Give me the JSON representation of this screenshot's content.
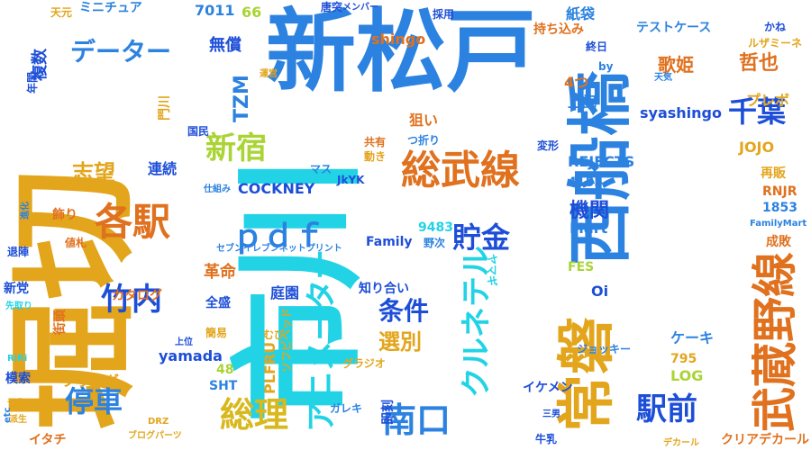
{
  "colors": {
    "blue": "#2c82e0",
    "cyan": "#22d3e6",
    "amber": "#e3a51c",
    "orange": "#e0711e",
    "darkblue": "#1d4ed8",
    "lime": "#a9d433",
    "gold": "#d9b81d"
  },
  "words": [
    {
      "text": "新松戸",
      "color": "blue"
    },
    {
      "text": "市川",
      "color": "cyan"
    },
    {
      "text": "堀切",
      "color": "amber"
    },
    {
      "text": "西船橋",
      "color": "blue"
    },
    {
      "text": "常磐",
      "color": "amber"
    },
    {
      "text": "武蔵野線",
      "color": "orange"
    },
    {
      "text": "総武線",
      "color": "orange"
    },
    {
      "text": "各駅",
      "color": "orange"
    },
    {
      "text": "新宿",
      "color": "lime"
    },
    {
      "text": "千葉",
      "color": "darkblue"
    },
    {
      "text": "竹内",
      "color": "darkblue"
    },
    {
      "text": "停車",
      "color": "blue"
    },
    {
      "text": "総理",
      "color": "gold"
    },
    {
      "text": "南口",
      "color": "blue"
    },
    {
      "text": "駅前",
      "color": "darkblue"
    },
    {
      "text": "貯金",
      "color": "darkblue"
    },
    {
      "text": "ｐｄｆ",
      "color": "blue"
    },
    {
      "text": "データー",
      "color": "blue"
    },
    {
      "text": "クルネテル",
      "color": "cyan"
    },
    {
      "text": "アニメーター",
      "color": "cyan"
    },
    {
      "text": "条件",
      "color": "darkblue"
    },
    {
      "text": "選別",
      "color": "amber"
    },
    {
      "text": "機関",
      "color": "darkblue"
    },
    {
      "text": "志望",
      "color": "amber"
    },
    {
      "text": "哲也",
      "color": "orange"
    },
    {
      "text": "歌姫",
      "color": "orange"
    },
    {
      "text": "無償",
      "color": "darkblue"
    },
    {
      "text": "TZM",
      "color": "blue"
    },
    {
      "text": "COCKNEY",
      "color": "darkblue"
    },
    {
      "text": "REJECTS",
      "color": "blue"
    },
    {
      "text": "syashingo",
      "color": "darkblue"
    },
    {
      "text": "shingo",
      "color": "orange"
    },
    {
      "text": "Family",
      "color": "darkblue"
    },
    {
      "text": "Mart",
      "color": "blue"
    },
    {
      "text": "革命",
      "color": "orange"
    },
    {
      "text": "庭園",
      "color": "darkblue"
    },
    {
      "text": "yamada",
      "color": "darkblue"
    },
    {
      "text": "ケーキ",
      "color": "blue"
    },
    {
      "text": "フラッグ",
      "color": "amber"
    },
    {
      "text": "テストケース",
      "color": "blue"
    },
    {
      "text": "ミニチュア",
      "color": "blue"
    },
    {
      "text": "JOJO",
      "color": "amber"
    },
    {
      "text": "プレボ",
      "color": "amber"
    },
    {
      "text": "上記",
      "color": "blue"
    },
    {
      "text": "狙い",
      "color": "orange"
    },
    {
      "text": "連続",
      "color": "darkblue"
    },
    {
      "text": "紙袋",
      "color": "blue"
    },
    {
      "text": "4つ",
      "color": "orange"
    },
    {
      "text": "LOG",
      "color": "lime"
    },
    {
      "text": "FES",
      "color": "lime"
    },
    {
      "text": "SHT",
      "color": "blue"
    },
    {
      "text": "48",
      "color": "lime"
    },
    {
      "text": "66",
      "color": "lime"
    },
    {
      "text": "7011",
      "color": "blue"
    },
    {
      "text": "9483",
      "color": "cyan"
    },
    {
      "text": "4155",
      "color": "blue"
    },
    {
      "text": "1853",
      "color": "blue"
    },
    {
      "text": "795",
      "color": "amber"
    },
    {
      "text": "Oi",
      "color": "darkblue"
    },
    {
      "text": "RNJR",
      "color": "orange"
    },
    {
      "text": "再販",
      "color": "amber"
    },
    {
      "text": "成敗",
      "color": "orange"
    },
    {
      "text": "かね",
      "color": "darkblue"
    },
    {
      "text": "複数",
      "color": "darkblue"
    },
    {
      "text": "年間",
      "color": "darkblue"
    },
    {
      "text": "飾り",
      "color": "orange"
    },
    {
      "text": "値札",
      "color": "orange"
    },
    {
      "text": "新党",
      "color": "darkblue"
    },
    {
      "text": "先取り",
      "color": "cyan"
    },
    {
      "text": "街頭",
      "color": "orange"
    },
    {
      "text": "模索",
      "color": "darkblue"
    },
    {
      "text": "RiRi",
      "color": "cyan"
    },
    {
      "text": "予告",
      "color": "amber"
    },
    {
      "text": "派生",
      "color": "amber"
    },
    {
      "text": "etc",
      "color": "blue"
    },
    {
      "text": "イタチ",
      "color": "orange"
    },
    {
      "text": "ブログパーツ",
      "color": "amber"
    },
    {
      "text": "DRZ",
      "color": "amber"
    },
    {
      "text": "即刻",
      "color": "darkblue"
    },
    {
      "text": "三男",
      "color": "darkblue"
    },
    {
      "text": "牛乳",
      "color": "darkblue"
    },
    {
      "text": "デカール",
      "color": "amber"
    },
    {
      "text": "クリアデカール",
      "color": "orange"
    },
    {
      "text": "イケメン",
      "color": "darkblue"
    },
    {
      "text": "ガレキ",
      "color": "blue"
    },
    {
      "text": "グラジオ",
      "color": "amber"
    },
    {
      "text": "ソフビヘッド",
      "color": "amber"
    },
    {
      "text": "PLFRU",
      "color": "amber"
    },
    {
      "text": "むび",
      "color": "amber"
    },
    {
      "text": "上位",
      "color": "darkblue"
    },
    {
      "text": "簡易",
      "color": "amber"
    },
    {
      "text": "全盛",
      "color": "darkblue"
    },
    {
      "text": "カタログ",
      "color": "orange"
    },
    {
      "text": "知り合い",
      "color": "darkblue"
    },
    {
      "text": "ヤマギ",
      "color": "cyan"
    },
    {
      "text": "ジョッキー",
      "color": "blue"
    },
    {
      "text": "野次",
      "color": "blue"
    },
    {
      "text": "セブンイレブンネットプリント",
      "color": "blue"
    },
    {
      "text": "FamilyMart",
      "color": "blue"
    },
    {
      "text": "JkYK",
      "color": "darkblue"
    },
    {
      "text": "マス",
      "color": "blue"
    },
    {
      "text": "仕組み",
      "color": "blue"
    },
    {
      "text": "変形",
      "color": "darkblue"
    },
    {
      "text": "共有",
      "color": "orange"
    },
    {
      "text": "動き",
      "color": "amber"
    },
    {
      "text": "つ折り",
      "color": "blue"
    },
    {
      "text": "国民",
      "color": "darkblue"
    },
    {
      "text": "運営",
      "color": "amber"
    },
    {
      "text": "門川",
      "color": "amber"
    },
    {
      "text": "TH",
      "color": "amber"
    },
    {
      "text": "進化",
      "color": "blue"
    },
    {
      "text": "退陣",
      "color": "darkblue"
    },
    {
      "text": "天元",
      "color": "amber"
    },
    {
      "text": "唐突",
      "color": "darkblue"
    },
    {
      "text": "メンバー",
      "color": "darkblue"
    },
    {
      "text": "採用",
      "color": "darkblue"
    },
    {
      "text": "持ち込み",
      "color": "orange"
    },
    {
      "text": "終日",
      "color": "darkblue"
    },
    {
      "text": "by",
      "color": "blue"
    },
    {
      "text": "ルザミーネ",
      "color": "amber"
    },
    {
      "text": "天気",
      "color": "blue"
    }
  ]
}
